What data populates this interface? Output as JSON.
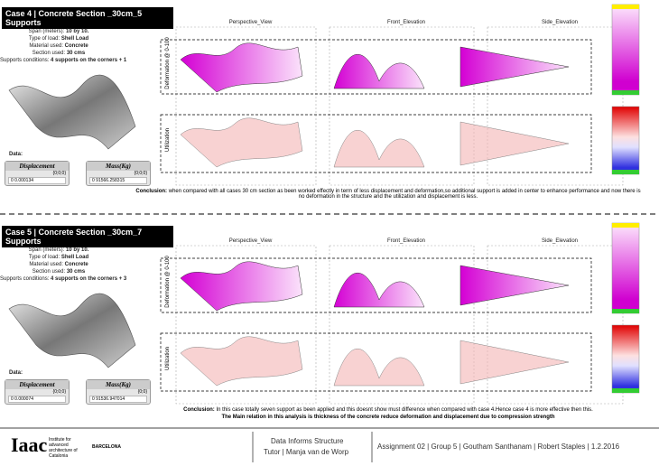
{
  "cases": [
    {
      "title": "Case 4 | Concrete Section _30cm_5 Supports",
      "specs": [
        {
          "label": "Span (meters):",
          "value": "10 by 10."
        },
        {
          "label": "Type of load:",
          "value": "Shell Load"
        },
        {
          "label": "Material used:",
          "value": "Concrete"
        },
        {
          "label": "Section used:",
          "value": "30 cms"
        },
        {
          "label": "Supports conditions:",
          "value": "4 supports on the corners + 1"
        }
      ],
      "data_label": "Data:",
      "panels": [
        {
          "title": "Displacement",
          "path": "{0;0;0}",
          "value": "0 0.000134"
        },
        {
          "title": "Mass(Kg)",
          "path": "{0;0;0}",
          "value": "0 91566.258315"
        }
      ],
      "views": [
        "Perspective_View",
        "Front_Elevation",
        "Side_Elevation"
      ],
      "rows": [
        "Deformation @ 0-100",
        "Utilization"
      ],
      "conclusion_label": "Conclusion:",
      "conclusion": "when compared with all cases 30 cm section as been worked effectly in term of less displacement and deformation,so additional support is added in center to enhance performance and now there is no deformation in the structure and the utilization and displacement is less."
    },
    {
      "title": "Case 5 | Concrete Section _30cm_7 Supports",
      "specs": [
        {
          "label": "Span (meters):",
          "value": "10 by 10."
        },
        {
          "label": "Type of load:",
          "value": "Shell Load"
        },
        {
          "label": "Material used:",
          "value": "Concrete"
        },
        {
          "label": "Section used:",
          "value": "30 cms"
        },
        {
          "label": "Supports conditions:",
          "value": "4 supports on the corners + 3"
        }
      ],
      "data_label": "Data:",
      "panels": [
        {
          "title": "Displacement",
          "path": "{0;0;0}",
          "value": "0 0.000074"
        },
        {
          "title": "Mass(Kg)",
          "path": "{0;0}",
          "value": "0 91536.947014"
        }
      ],
      "views": [
        "Perspective_View",
        "Front_Elevation",
        "Side_Elevation"
      ],
      "rows": [
        "Deformation @ 0-100",
        "Utilization"
      ],
      "conclusion_label": "Conclusion:",
      "conclusion": "In this case totally seven support as been applied and this doesnt show must difference when compared with case 4.Hence case 4 is more effective then this.",
      "main_relation": "The Main relation in this analysis is thickness of the concrete reduce deformation and displacement due to compression strength"
    }
  ],
  "footer": {
    "logo": "Iaac",
    "institute": "Institute for advanced architecture of Catalonia",
    "city": "BARCELONA",
    "course": "Data Informs Structure",
    "tutor": "Tutor | Manja van de Worp",
    "credits": "Assignment 02 | Group 5  | Goutham Santhanam | Robert Staples | 1.2.2016"
  }
}
